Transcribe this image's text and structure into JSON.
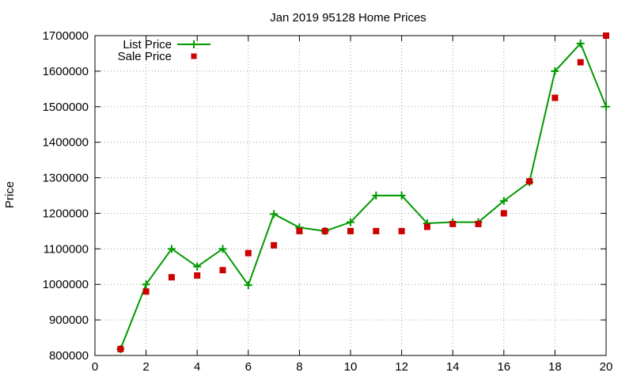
{
  "chart_data": {
    "type": "line",
    "title": "Jan 2019 95128 Home Prices",
    "xlabel": "",
    "ylabel": "Price",
    "xlim": [
      0,
      20
    ],
    "ylim": [
      800000,
      1700000
    ],
    "xticks": [
      0,
      2,
      4,
      6,
      8,
      10,
      12,
      14,
      16,
      18,
      20
    ],
    "yticks": [
      800000,
      900000,
      1000000,
      1100000,
      1200000,
      1300000,
      1400000,
      1500000,
      1600000,
      1700000
    ],
    "grid": true,
    "legend_position": "top-left",
    "series": [
      {
        "name": "List Price",
        "style": "line-with-plus-markers",
        "color": "#009900",
        "x": [
          1,
          2,
          3,
          4,
          5,
          6,
          7,
          8,
          9,
          10,
          11,
          12,
          13,
          14,
          15,
          16,
          17,
          18,
          19,
          20
        ],
        "y": [
          818000,
          1000000,
          1100000,
          1050000,
          1100000,
          998000,
          1198000,
          1160000,
          1150000,
          1175000,
          1250000,
          1250000,
          1172000,
          1175000,
          1175000,
          1235000,
          1288000,
          1600000,
          1678000,
          1500000
        ]
      },
      {
        "name": "Sale Price",
        "style": "square-points",
        "color": "#cc0000",
        "x": [
          1,
          2,
          3,
          4,
          5,
          6,
          7,
          8,
          9,
          10,
          11,
          12,
          13,
          14,
          15,
          16,
          17,
          18,
          19,
          20
        ],
        "y": [
          818000,
          980000,
          1020000,
          1025000,
          1040000,
          1088000,
          1110000,
          1150000,
          1150000,
          1150000,
          1150000,
          1150000,
          1162000,
          1170000,
          1170000,
          1200000,
          1290000,
          1525000,
          1625000,
          1700000
        ]
      }
    ]
  }
}
